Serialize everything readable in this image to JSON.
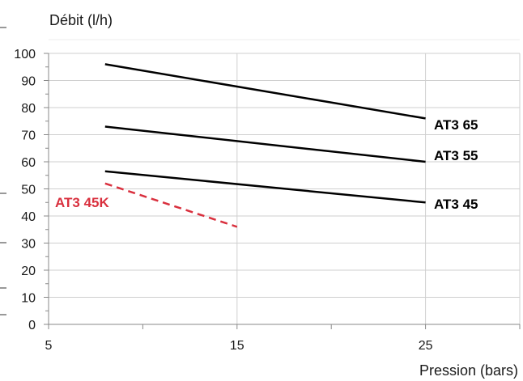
{
  "chart_data": {
    "type": "line",
    "title": "",
    "ylabel": "Débit (l/h)",
    "xlabel": "Pression (bars)",
    "xlim": [
      5,
      30
    ],
    "ylim": [
      0,
      100
    ],
    "x_ticks": [
      5,
      15,
      25
    ],
    "y_ticks": [
      0,
      10,
      20,
      30,
      40,
      50,
      60,
      70,
      80,
      90,
      100
    ],
    "grid": true,
    "series": [
      {
        "name": "AT3 65",
        "color": "#000000",
        "dashed": false,
        "x": [
          8,
          25
        ],
        "y": [
          96,
          76
        ]
      },
      {
        "name": "AT3 55",
        "color": "#000000",
        "dashed": false,
        "x": [
          8,
          25
        ],
        "y": [
          73,
          60
        ]
      },
      {
        "name": "AT3 45",
        "color": "#000000",
        "dashed": false,
        "x": [
          8,
          25
        ],
        "y": [
          56.5,
          45
        ]
      },
      {
        "name": "AT3 45K",
        "color": "#d9303e",
        "dashed": true,
        "x": [
          8,
          15
        ],
        "y": [
          52,
          36
        ]
      }
    ]
  }
}
